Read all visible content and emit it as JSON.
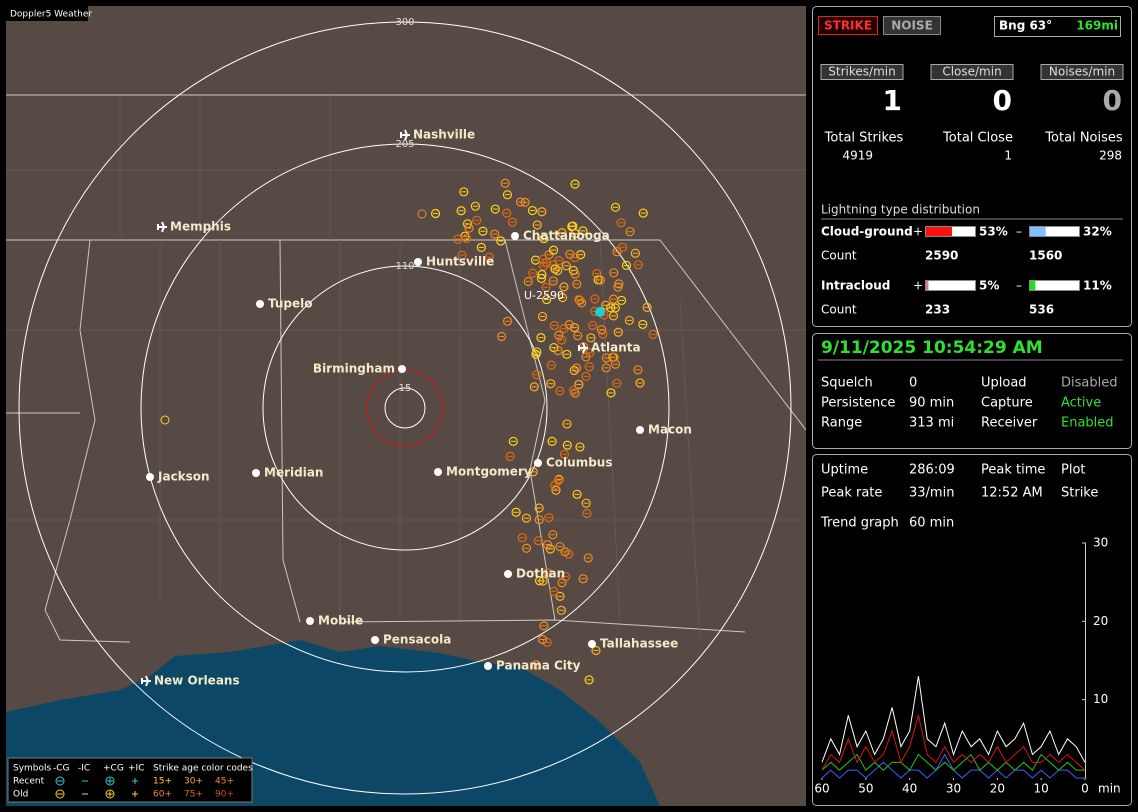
{
  "map": {
    "title": "Doppler5 Weather",
    "rings": [
      "300",
      "205",
      "110",
      "15"
    ],
    "strike_label": "U-2590",
    "cities": [
      "Nashville",
      "Memphis",
      "Chattanooga",
      "Huntsville",
      "Tupelo",
      "Birmingham",
      "Atlanta",
      "Macon",
      "Jackson",
      "Meridian",
      "Montgomery",
      "Columbus",
      "Dothan",
      "Mobile",
      "Pensacola",
      "Tallahassee",
      "Panama City",
      "New Orleans"
    ],
    "legend": {
      "symbols_label": "Symbols",
      "symbols": [
        "-CG",
        "-IC",
        "+CG",
        "+IC"
      ],
      "age_label": "Strike age color codes",
      "recent": "Recent",
      "old": "Old",
      "recent_ages": [
        "15+",
        "30+",
        "45+"
      ],
      "old_ages": [
        "60+",
        "75+",
        "90+"
      ]
    }
  },
  "status": {
    "strike_button": "STRIKE",
    "noise_button": "NOISE",
    "bearing": "Bng 63°",
    "distance": "169mi",
    "rates": [
      {
        "label": "Strikes/min",
        "value": 1
      },
      {
        "label": "Close/min",
        "value": 0
      },
      {
        "label": "Noises/min",
        "value": 0
      }
    ],
    "totals": [
      {
        "label": "Total Strikes",
        "value": 4919
      },
      {
        "label": "Total Close",
        "value": 1
      },
      {
        "label": "Total Noises",
        "value": 298
      }
    ],
    "distribution": {
      "title": "Lightning type distribution",
      "rows": [
        {
          "label": "Cloud-ground",
          "plus": "+",
          "minus": "–",
          "pos_pct": {
            "value": 53,
            "label": "53%"
          },
          "neg_pct": {
            "value": 32,
            "label": "32%"
          },
          "count_label": "Count",
          "pos_count": 2590,
          "neg_count": 1560
        },
        {
          "label": "Intracloud",
          "plus": "+",
          "minus": "–",
          "pos_pct": {
            "value": 5,
            "label": "5%"
          },
          "neg_pct": {
            "value": 11,
            "label": "11%"
          },
          "count_label": "Count",
          "pos_count": 233,
          "neg_count": 536
        }
      ]
    }
  },
  "settings": {
    "datetime": "9/11/2025 10:54:29 AM",
    "rows": [
      [
        "Squelch",
        "0",
        "Upload",
        "Disabled"
      ],
      [
        "Persistence",
        "90 min",
        "Capture",
        "Active"
      ],
      [
        "Range",
        "313 mi",
        "Receiver",
        "Enabled"
      ]
    ]
  },
  "stats": {
    "rows": [
      [
        "Uptime",
        "286:09",
        "Peak time",
        "Plot"
      ],
      [
        "Peak rate",
        "33/min",
        "12:52 AM",
        "Strike"
      ],
      [
        "Trend graph",
        "60 min"
      ]
    ]
  },
  "trend": {
    "xlim": [
      60,
      0
    ],
    "ylim": [
      0,
      30
    ],
    "xticks": [
      60,
      50,
      40,
      30,
      20,
      10,
      0
    ],
    "yticks": [
      30,
      20,
      10
    ],
    "x_unit": "min",
    "x": [
      60,
      58,
      56,
      54,
      52,
      50,
      48,
      46,
      44,
      42,
      40,
      38,
      36,
      34,
      32,
      30,
      28,
      26,
      24,
      22,
      20,
      18,
      16,
      14,
      12,
      10,
      8,
      6,
      4,
      2,
      0
    ],
    "series": [
      {
        "color": "#ffffff",
        "values": [
          2,
          5,
          3,
          8,
          4,
          6,
          3,
          5,
          9,
          4,
          6,
          13,
          5,
          4,
          7,
          3,
          6,
          4,
          5,
          3,
          6,
          4,
          5,
          7,
          3,
          4,
          6,
          3,
          5,
          4,
          2
        ]
      },
      {
        "color": "#e01010",
        "values": [
          1,
          3,
          2,
          5,
          2,
          4,
          2,
          3,
          6,
          2,
          4,
          8,
          3,
          2,
          4,
          2,
          3,
          2,
          3,
          2,
          4,
          2,
          3,
          4,
          2,
          2,
          3,
          2,
          3,
          2,
          1
        ]
      },
      {
        "color": "#20c020",
        "values": [
          1,
          2,
          1,
          2,
          3,
          1,
          2,
          1,
          2,
          2,
          1,
          3,
          2,
          1,
          2,
          1,
          2,
          3,
          1,
          2,
          1,
          2,
          1,
          2,
          1,
          3,
          2,
          1,
          2,
          1,
          1
        ]
      },
      {
        "color": "#4060ff",
        "values": [
          0,
          1,
          0,
          1,
          1,
          0,
          1,
          2,
          1,
          0,
          1,
          1,
          0,
          1,
          3,
          1,
          0,
          1,
          1,
          0,
          1,
          0,
          1,
          1,
          0,
          1,
          0,
          1,
          1,
          0,
          0
        ]
      }
    ]
  }
}
